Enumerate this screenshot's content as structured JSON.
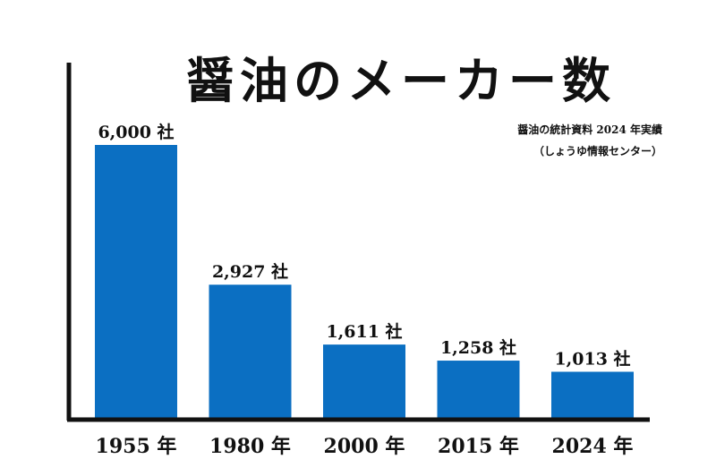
{
  "chart_data": {
    "type": "bar",
    "title": "醤油のメーカー数",
    "source_line1": "醤油の統計資料 2024 年実績",
    "source_line2": "（しょうゆ情報センター）",
    "categories": [
      "1955 年",
      "1980 年",
      "2000 年",
      "2015 年",
      "2024 年"
    ],
    "values": [
      6000,
      2927,
      1611,
      1258,
      1013
    ],
    "value_labels": [
      "6,000 社",
      "2,927 社",
      "1,611 社",
      "1,258 社",
      "1,013 社"
    ],
    "ylim": [
      0,
      6000
    ],
    "grid": false,
    "legend": "none",
    "bar_color": "#0b6fc2",
    "axis_color": "#111111"
  }
}
